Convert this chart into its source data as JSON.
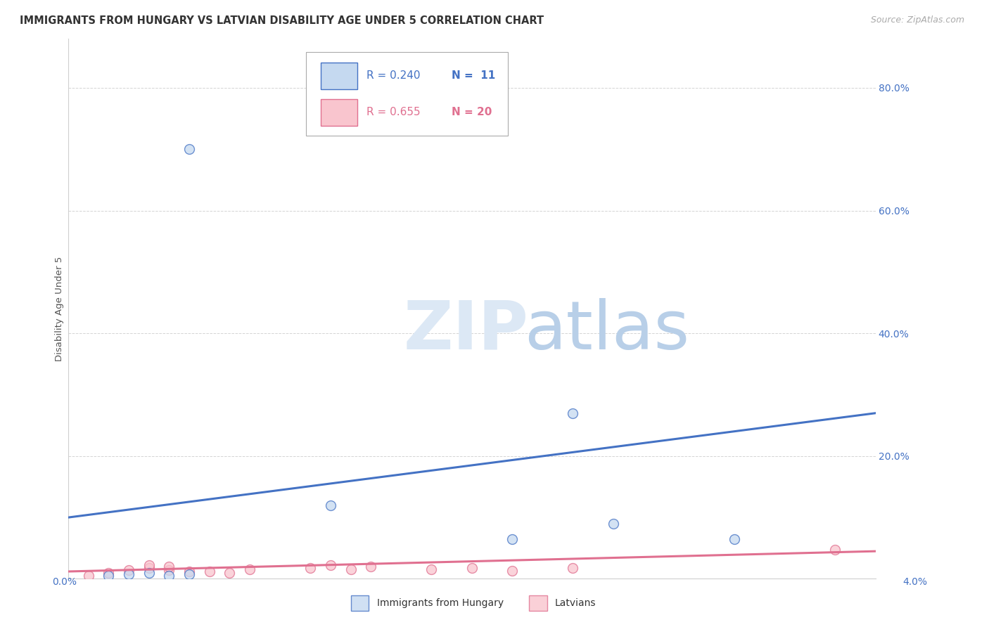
{
  "title": "IMMIGRANTS FROM HUNGARY VS LATVIAN DISABILITY AGE UNDER 5 CORRELATION CHART",
  "source": "Source: ZipAtlas.com",
  "ylabel": "Disability Age Under 5",
  "xlim": [
    0.0,
    0.04
  ],
  "ylim": [
    0.0,
    0.88
  ],
  "ytick_positions": [
    0.0,
    0.2,
    0.4,
    0.6,
    0.8
  ],
  "ytick_labels": [
    "",
    "20.0%",
    "40.0%",
    "60.0%",
    "80.0%"
  ],
  "hungary_points": [
    [
      0.002,
      0.005
    ],
    [
      0.003,
      0.007
    ],
    [
      0.004,
      0.01
    ],
    [
      0.005,
      0.005
    ],
    [
      0.006,
      0.007
    ],
    [
      0.006,
      0.7
    ],
    [
      0.013,
      0.12
    ],
    [
      0.022,
      0.065
    ],
    [
      0.025,
      0.27
    ],
    [
      0.027,
      0.09
    ],
    [
      0.033,
      0.065
    ]
  ],
  "latvian_points": [
    [
      0.001,
      0.005
    ],
    [
      0.002,
      0.01
    ],
    [
      0.003,
      0.014
    ],
    [
      0.004,
      0.018
    ],
    [
      0.004,
      0.022
    ],
    [
      0.005,
      0.014
    ],
    [
      0.005,
      0.02
    ],
    [
      0.006,
      0.012
    ],
    [
      0.007,
      0.012
    ],
    [
      0.008,
      0.01
    ],
    [
      0.009,
      0.016
    ],
    [
      0.012,
      0.018
    ],
    [
      0.013,
      0.022
    ],
    [
      0.014,
      0.016
    ],
    [
      0.015,
      0.02
    ],
    [
      0.018,
      0.015
    ],
    [
      0.02,
      0.018
    ],
    [
      0.022,
      0.013
    ],
    [
      0.025,
      0.018
    ],
    [
      0.038,
      0.048
    ]
  ],
  "hungary_line_x": [
    0.0,
    0.04
  ],
  "hungary_line_y": [
    0.1,
    0.27
  ],
  "latvian_line_x": [
    0.0,
    0.04
  ],
  "latvian_line_y": [
    0.012,
    0.045
  ],
  "hungary_fill_color": "#c5d9f0",
  "hungary_edge_color": "#4472c4",
  "hungary_line_color": "#4472c4",
  "latvian_fill_color": "#f9c5ce",
  "latvian_edge_color": "#e07090",
  "latvian_line_color": "#e07090",
  "legend_r_hungary": "R = 0.240",
  "legend_n_hungary": "N =  11",
  "legend_r_latvian": "R = 0.655",
  "legend_n_latvian": "N = 20",
  "grid_color": "#d0d0d0",
  "background_color": "#ffffff",
  "title_fontsize": 10.5,
  "source_fontsize": 9,
  "marker_size": 100,
  "watermark_zip_color": "#dce8f5",
  "watermark_atlas_color": "#b8cfe8"
}
